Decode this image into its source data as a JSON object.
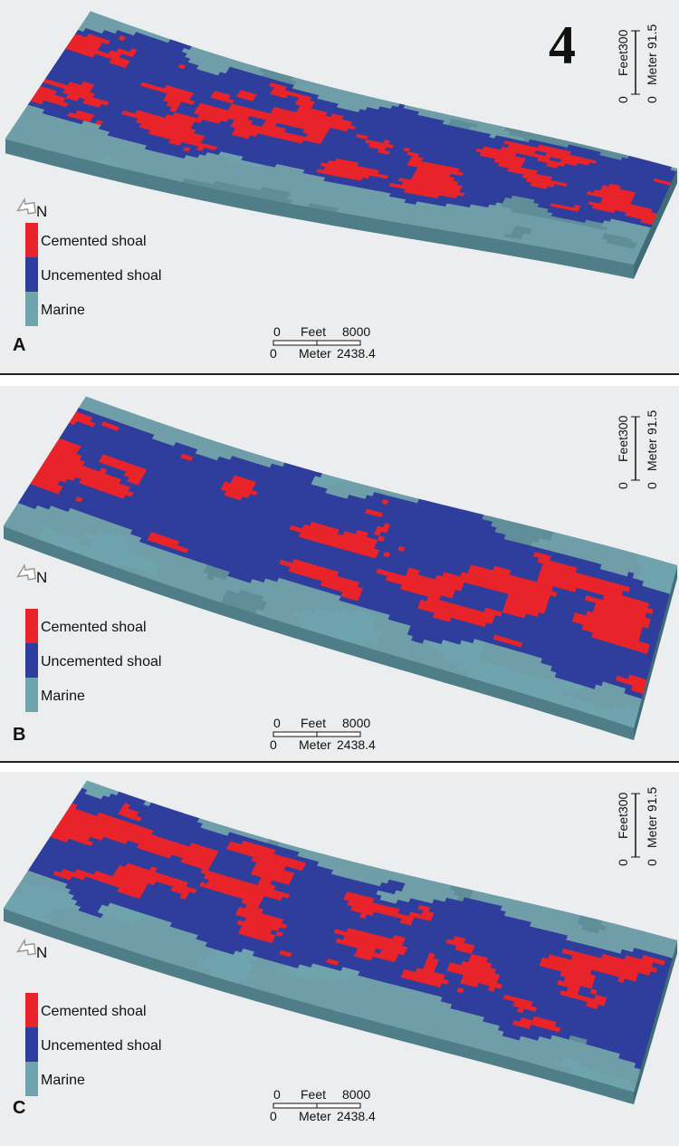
{
  "figure_number": "4",
  "vertical_scale": {
    "feet_label": "Feet",
    "feet_min": "0",
    "feet_max": "300",
    "meter_label": "Meter",
    "meter_min": "0",
    "meter_max": "91.5"
  },
  "horizontal_scale": {
    "feet_label": "Feet",
    "feet_min": "0",
    "feet_max": "8000",
    "meter_label": "Meter",
    "meter_min": "0",
    "meter_max": "2438.4"
  },
  "north_label": "N",
  "legend": [
    {
      "label": "Cemented shoal",
      "color": "#e8242a"
    },
    {
      "label": "Uncemented shoal",
      "color": "#2f3e9c"
    },
    {
      "label": "Marine",
      "color": "#6fa3ae"
    }
  ],
  "panels": [
    {
      "letter": "A"
    },
    {
      "letter": "B"
    },
    {
      "letter": "C"
    }
  ],
  "colors": {
    "surface": "#6f9ea9",
    "side": "#4f7d88",
    "background": "#ebedee"
  }
}
